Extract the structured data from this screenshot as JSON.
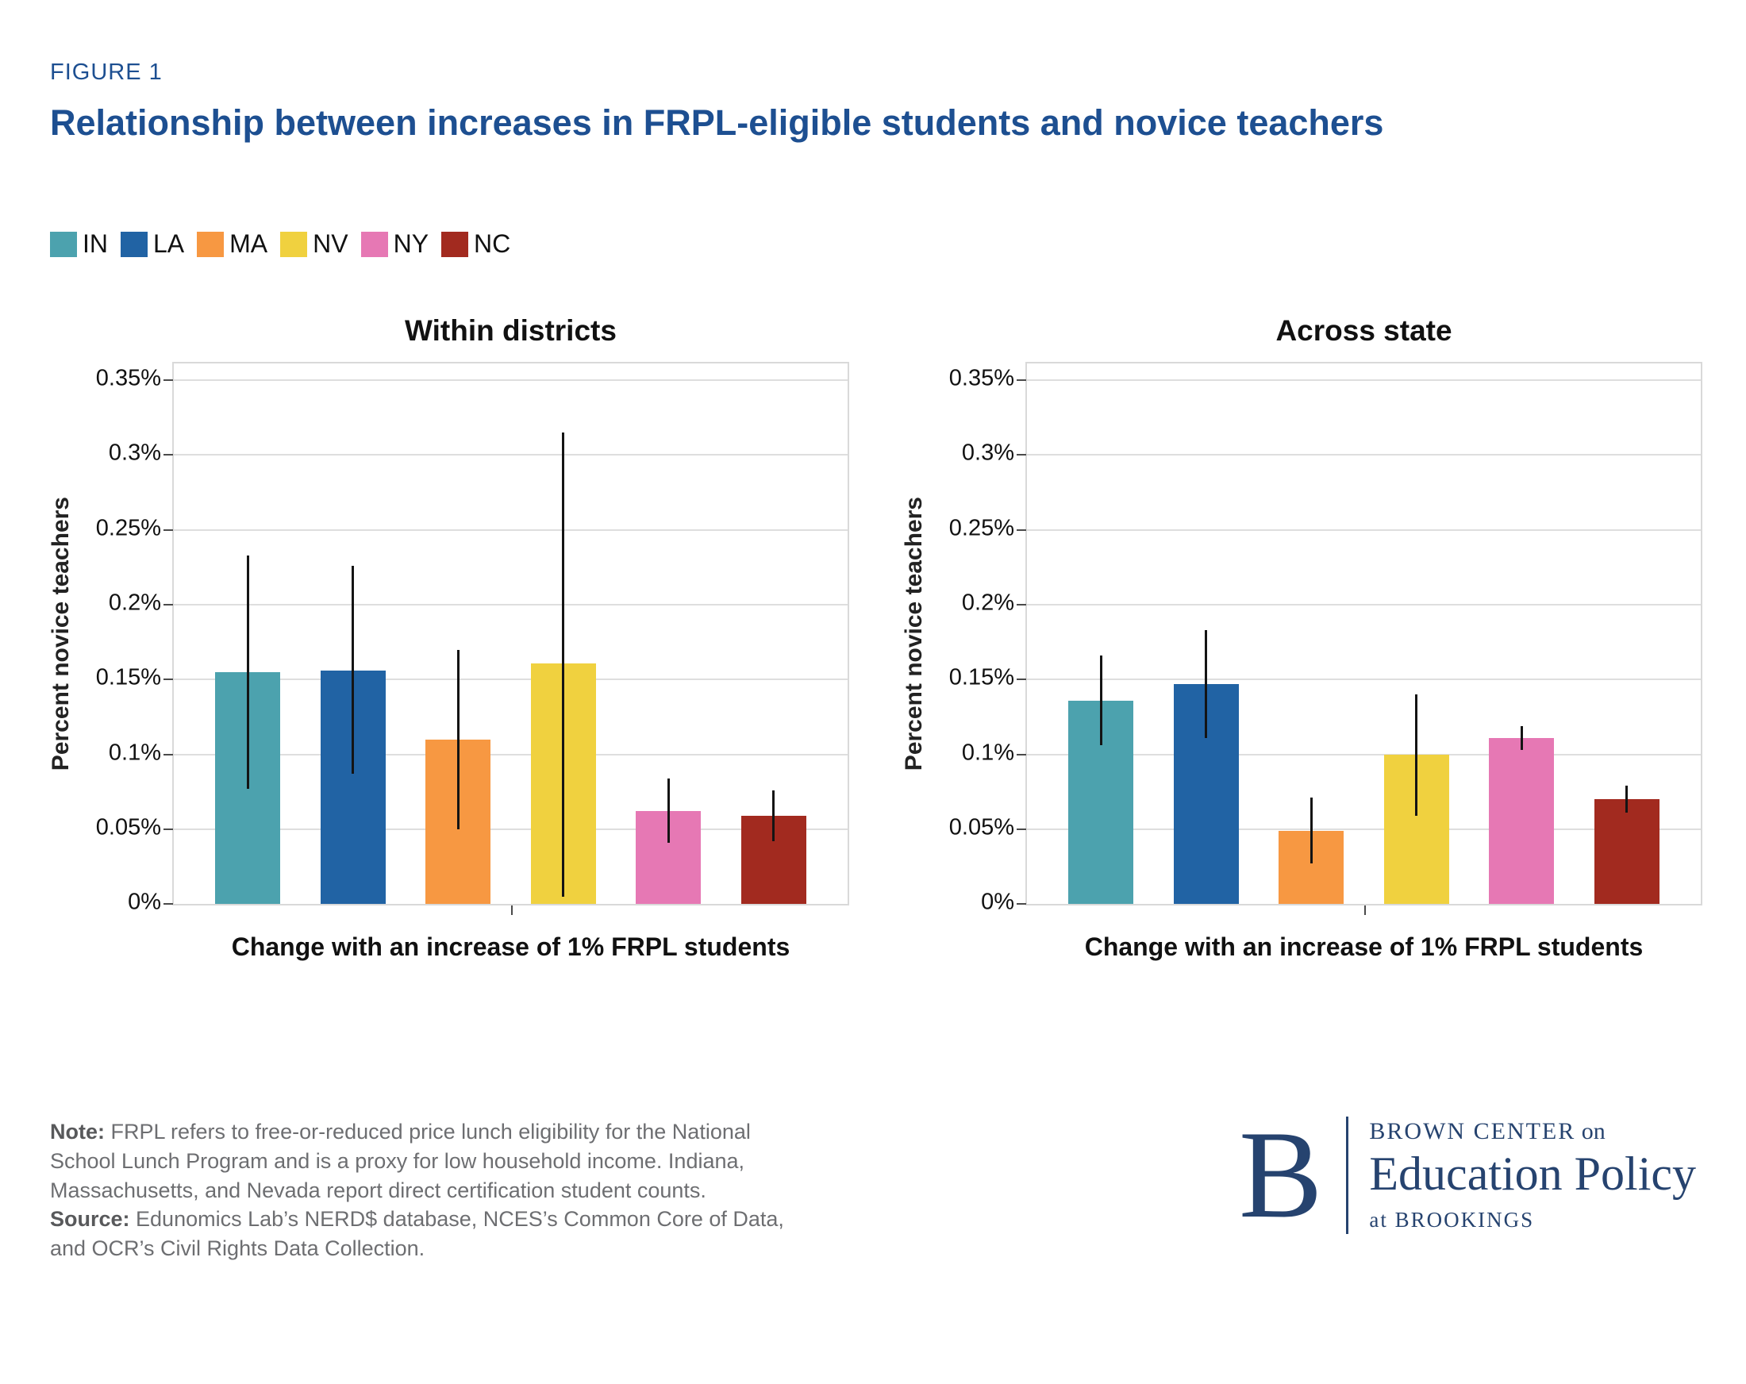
{
  "figure_label": "FIGURE 1",
  "title": "Relationship between increases in FRPL-eligible students and novice teachers",
  "colors": {
    "IN": "#4CA2AE",
    "LA": "#2163A4",
    "MA": "#F79842",
    "NV": "#F0D13F",
    "NY": "#E678B4",
    "NC": "#A22A1F"
  },
  "legend": [
    {
      "label": "IN",
      "color": "#4CA2AE"
    },
    {
      "label": "LA",
      "color": "#2163A4"
    },
    {
      "label": "MA",
      "color": "#F79842"
    },
    {
      "label": "NV",
      "color": "#F0D13F"
    },
    {
      "label": "NY",
      "color": "#E678B4"
    },
    {
      "label": "NC",
      "color": "#A22A1F"
    }
  ],
  "chart_data": [
    {
      "type": "bar",
      "title": "Within districts",
      "ylabel": "Percent novice teachers",
      "xlabel": "Change with an increase of 1% FRPL students",
      "categories": [
        "IN",
        "LA",
        "MA",
        "NV",
        "NY",
        "NC"
      ],
      "values": [
        0.155,
        0.156,
        0.11,
        0.161,
        0.062,
        0.059
      ],
      "error_low": [
        0.077,
        0.087,
        0.05,
        0.005,
        0.041,
        0.042
      ],
      "error_high": [
        0.233,
        0.226,
        0.17,
        0.315,
        0.084,
        0.076
      ],
      "yticks": [
        0,
        0.05,
        0.1,
        0.15,
        0.2,
        0.25,
        0.3,
        0.35
      ],
      "ytick_labels": [
        "0%",
        "0.05%",
        "0.1%",
        "0.15%",
        "0.2%",
        "0.25%",
        "0.3%",
        "0.35%"
      ],
      "ylim": [
        0,
        0.3612
      ],
      "grid": true,
      "legend_position": "top-left"
    },
    {
      "type": "bar",
      "title": "Across state",
      "ylabel": "Percent novice teachers",
      "xlabel": "Change with an increase of 1% FRPL students",
      "categories": [
        "IN",
        "LA",
        "MA",
        "NV",
        "NY",
        "NC"
      ],
      "values": [
        0.136,
        0.147,
        0.049,
        0.1,
        0.111,
        0.07
      ],
      "error_low": [
        0.106,
        0.111,
        0.027,
        0.059,
        0.103,
        0.061
      ],
      "error_high": [
        0.166,
        0.183,
        0.071,
        0.14,
        0.119,
        0.079
      ],
      "yticks": [
        0,
        0.05,
        0.1,
        0.15,
        0.2,
        0.25,
        0.3,
        0.35
      ],
      "ytick_labels": [
        "0%",
        "0.05%",
        "0.1%",
        "0.15%",
        "0.2%",
        "0.25%",
        "0.3%",
        "0.35%"
      ],
      "ylim": [
        0,
        0.3612
      ],
      "grid": true,
      "legend_position": "top-left"
    }
  ],
  "footer": {
    "note_label": "Note:",
    "note_text": " FRPL refers to free-or-reduced price lunch eligibility for the National School Lunch Program and is a proxy for low household income. Indiana, Massachusetts, and Nevada report direct certification student counts.",
    "source_label": "Source:",
    "source_text": "  Edunomics Lab’s NERD$ database, NCES’s Common Core of Data, and OCR’s Civil Rights Data Collection.",
    "logo": {
      "letter": "B",
      "line1_caps": "BROWN CENTER",
      "line1_small": " on",
      "line2": "Education Policy",
      "line3_small": "at ",
      "line3_caps": "BROOKINGS"
    }
  }
}
